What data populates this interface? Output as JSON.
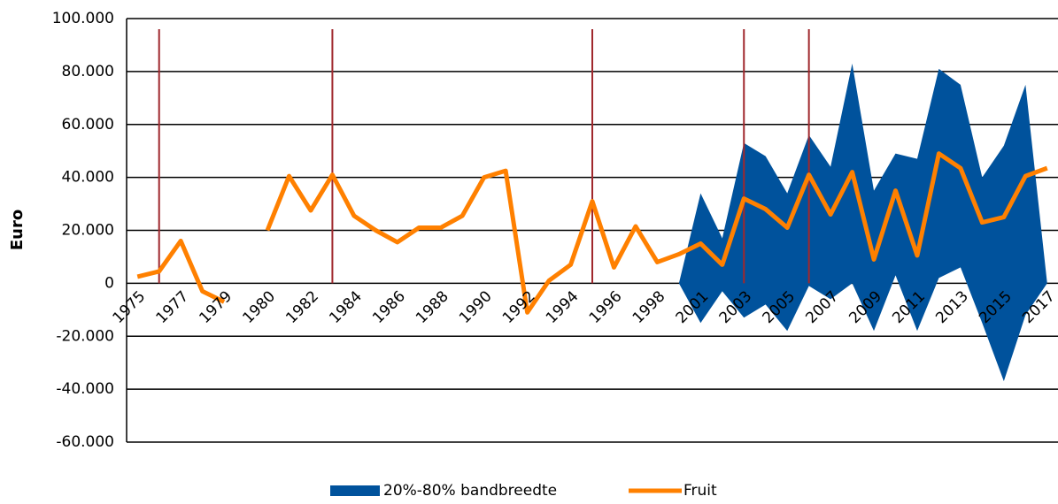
{
  "chart_data": {
    "type": "line",
    "y_label": "Euro",
    "categories": [
      "1975",
      null,
      "1977",
      null,
      "1979",
      null,
      "1980",
      null,
      "1982",
      null,
      "1984",
      null,
      "1986",
      null,
      "1988",
      null,
      "1990",
      null,
      "1992",
      null,
      "1994",
      null,
      "1996",
      null,
      "1998",
      null,
      "2001",
      null,
      "2003",
      null,
      "2005",
      null,
      "2007",
      null,
      "2009",
      null,
      "2011",
      null,
      "2013",
      null,
      "2015",
      null,
      "2017"
    ],
    "series": [
      {
        "name": "20%-80% bandbreedte",
        "color": "#00529c",
        "type": "band",
        "high": [
          null,
          null,
          null,
          null,
          null,
          null,
          null,
          null,
          null,
          null,
          null,
          null,
          null,
          null,
          null,
          null,
          null,
          null,
          null,
          null,
          null,
          null,
          null,
          null,
          null,
          0,
          34000,
          17000,
          53000,
          48000,
          34000,
          56000,
          44000,
          83000,
          35000,
          49000,
          47000,
          81000,
          75000,
          40000,
          52000,
          75000,
          0
        ],
        "low": [
          null,
          null,
          null,
          null,
          null,
          null,
          null,
          null,
          null,
          null,
          null,
          null,
          null,
          null,
          null,
          null,
          null,
          null,
          null,
          null,
          null,
          null,
          null,
          null,
          null,
          0,
          -15000,
          -3000,
          -13000,
          -8000,
          -18000,
          -1000,
          -6000,
          0,
          -18000,
          3000,
          -18000,
          2000,
          6000,
          -15000,
          -37000,
          -12000,
          0
        ]
      },
      {
        "name": "Fruit",
        "color": "#ff8000",
        "type": "line",
        "values": [
          2500,
          4500,
          16000,
          -3000,
          -7000,
          null,
          20000,
          40500,
          27500,
          41000,
          25500,
          20000,
          15500,
          21000,
          21000,
          25500,
          40000,
          42500,
          -11000,
          1000,
          7000,
          31000,
          6000,
          21500,
          8000,
          11000,
          15000,
          7000,
          32000,
          28000,
          21000,
          41000,
          26000,
          42000,
          9000,
          35000,
          10500,
          49000,
          43500,
          23000,
          25000,
          40500,
          43500
        ]
      }
    ],
    "event_lines": {
      "color": "#a0282d",
      "values": [
        null,
        96000,
        null,
        null,
        null,
        null,
        null,
        null,
        null,
        96000,
        null,
        null,
        null,
        null,
        null,
        null,
        null,
        null,
        null,
        null,
        null,
        96000,
        null,
        null,
        null,
        null,
        null,
        null,
        96000,
        null,
        null,
        96000,
        null,
        null,
        null,
        null,
        null,
        null,
        null,
        null,
        null,
        null,
        null
      ]
    },
    "ylim": [
      -60000,
      100000
    ],
    "yticks": [
      {
        "value": -60000,
        "label": "-60.000"
      },
      {
        "value": -40000,
        "label": "-40.000"
      },
      {
        "value": -20000,
        "label": "-20.000"
      },
      0,
      {
        "value": 20000,
        "label": "20.000"
      },
      {
        "value": 40000,
        "label": "40.000"
      },
      {
        "value": 60000,
        "label": "60.000"
      },
      {
        "value": 80000,
        "label": "80.000"
      },
      {
        "value": 100000,
        "label": "100.000"
      }
    ],
    "grid": true
  }
}
